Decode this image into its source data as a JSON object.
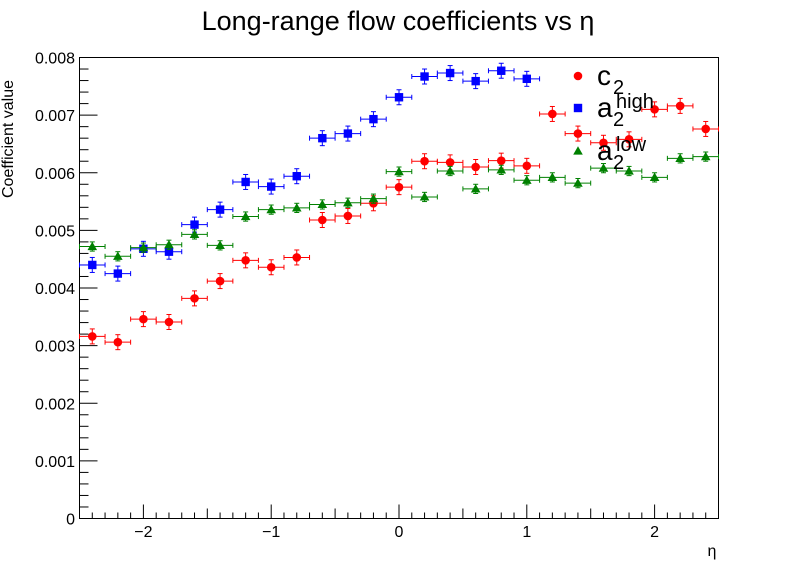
{
  "chart_data": {
    "type": "scatter",
    "title": "Long-range flow coefficients vs   η",
    "xlabel": "η",
    "ylabel": "Coefficient value",
    "xlim": [
      -2.5,
      2.5
    ],
    "ylim": [
      0,
      0.008
    ],
    "x_ticks": [
      -2,
      -1,
      0,
      1,
      2
    ],
    "x_tick_labels": [
      "−2",
      "−1",
      "0",
      "1",
      "2"
    ],
    "y_ticks": [
      0,
      0.001,
      0.002,
      0.003,
      0.004,
      0.005,
      0.006,
      0.007,
      0.008
    ],
    "y_tick_labels": [
      "0",
      "0.001",
      "0.002",
      "0.003",
      "0.004",
      "0.005",
      "0.006",
      "0.007",
      "0.008"
    ],
    "x_bin_halfwidth": 0.1,
    "legend_position": "top-right",
    "grid": false,
    "series": [
      {
        "legend_main": "c",
        "legend_sub": "2",
        "marker": "circle",
        "color": "#ff0000",
        "x": [
          -2.4,
          -2.2,
          -2.0,
          -1.8,
          -1.6,
          -1.4,
          -1.2,
          -1.0,
          -0.8,
          -0.6,
          -0.4,
          -0.2,
          0.0,
          0.2,
          0.4,
          0.6,
          0.8,
          1.0,
          1.2,
          1.4,
          1.6,
          1.8,
          2.0,
          2.2,
          2.4
        ],
        "y": [
          0.00316,
          0.00306,
          0.00346,
          0.00341,
          0.00382,
          0.00412,
          0.00448,
          0.00436,
          0.00453,
          0.00518,
          0.00525,
          0.00547,
          0.00575,
          0.0062,
          0.00618,
          0.0061,
          0.00621,
          0.00612,
          0.00702,
          0.00668,
          0.00652,
          0.00658,
          0.0071,
          0.00716,
          0.00676
        ],
        "yerr": 0.00013
      },
      {
        "legend_main": "a",
        "legend_sub": "2",
        "legend_sup": "high",
        "marker": "square",
        "color": "#0000ff",
        "x": [
          -2.4,
          -2.2,
          -2.0,
          -1.8,
          -1.6,
          -1.4,
          -1.2,
          -1.0,
          -0.8,
          -0.6,
          -0.4,
          -0.2,
          0.0,
          0.2,
          0.4,
          0.6,
          0.8,
          1.0
        ],
        "y": [
          0.0044,
          0.00425,
          0.00468,
          0.00463,
          0.0051,
          0.00536,
          0.00584,
          0.00576,
          0.00594,
          0.0066,
          0.00668,
          0.00693,
          0.00731,
          0.00767,
          0.00773,
          0.00759,
          0.00777,
          0.00763
        ],
        "yerr": 0.00013
      },
      {
        "legend_main": "a",
        "legend_sub": "2",
        "legend_sup": "low",
        "marker": "triangle",
        "color": "#008000",
        "x": [
          -2.4,
          -2.2,
          -2.0,
          -1.8,
          -1.6,
          -1.4,
          -1.2,
          -1.0,
          -0.8,
          -0.6,
          -0.4,
          -0.2,
          0.0,
          0.2,
          0.4,
          0.6,
          0.8,
          1.0,
          1.2,
          1.4,
          1.6,
          1.8,
          2.0,
          2.2,
          2.4
        ],
        "y": [
          0.00472,
          0.00455,
          0.0047,
          0.00475,
          0.00493,
          0.00474,
          0.00524,
          0.00536,
          0.00539,
          0.00545,
          0.00548,
          0.00555,
          0.00602,
          0.00558,
          0.00603,
          0.00572,
          0.00605,
          0.00587,
          0.00592,
          0.00582,
          0.00608,
          0.00603,
          0.00592,
          0.00625,
          0.00628
        ],
        "yerr": 8e-05
      }
    ]
  }
}
